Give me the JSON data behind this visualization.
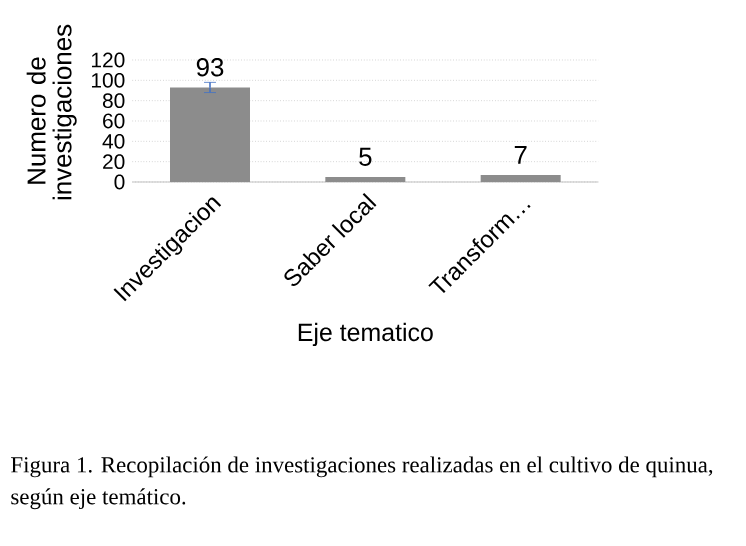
{
  "chart_data": {
    "type": "bar",
    "categories": [
      "Investigacion",
      "Saber local",
      "Transform…"
    ],
    "values": [
      93,
      5,
      7
    ],
    "errors": [
      5,
      null,
      null
    ],
    "color": "#8c8c8c",
    "ylim": [
      0,
      120
    ],
    "yticks": [
      0,
      20,
      40,
      60,
      80,
      100,
      120
    ],
    "grid": "y",
    "data_labels": true,
    "xlabel": "Eje tematico",
    "ylabel": "Numero de investigaciones",
    "annotations": [
      "Figura 1. Recopilación de investigaciones realizadas en el cultivo de quinua, según eje temático."
    ]
  }
}
